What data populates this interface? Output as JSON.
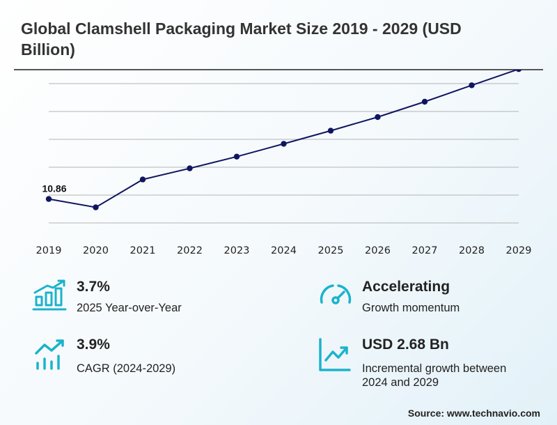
{
  "header": {
    "title": "Global Clamshell Packaging Market Size 2019 - 2029 (USD Billion)"
  },
  "chart_data": {
    "type": "line",
    "title": "Global Clamshell Packaging Market Size 2019 - 2029 (USD Billion)",
    "xlabel": "",
    "ylabel": "",
    "categories": [
      "2019",
      "2020",
      "2021",
      "2022",
      "2023",
      "2024",
      "2025",
      "2026",
      "2027",
      "2028",
      "2029"
    ],
    "series": [
      {
        "values": [
          10.86,
          10.56,
          11.56,
          11.96,
          12.38,
          12.84,
          13.31,
          13.8,
          14.35,
          14.94,
          15.52
        ]
      }
    ],
    "data_labels": [
      {
        "index": 0,
        "text": "10.86"
      }
    ],
    "ylim": [
      10.0,
      15.0
    ],
    "grid": true,
    "y_ticks_visible": false,
    "line_color": "#0f1660",
    "marker_color": "#0f1660",
    "grid_color": "#b3b3b3"
  },
  "stats": [
    {
      "value": "3.7%",
      "description": "2025 Year-over-Year",
      "icon": "bar-chart-growth-icon"
    },
    {
      "value": "Accelerating",
      "description": "Growth momentum",
      "icon": "speedometer-icon"
    },
    {
      "value": "3.9%",
      "description": "CAGR (2024-2029)",
      "icon": "trend-bars-icon"
    },
    {
      "value": "USD 2.68 Bn",
      "description": "Incremental growth between 2024 and 2029",
      "icon": "line-chart-up-icon"
    }
  ],
  "icon_color": "#1bb3cc",
  "footer": {
    "source": "Source: www.technavio.com"
  }
}
